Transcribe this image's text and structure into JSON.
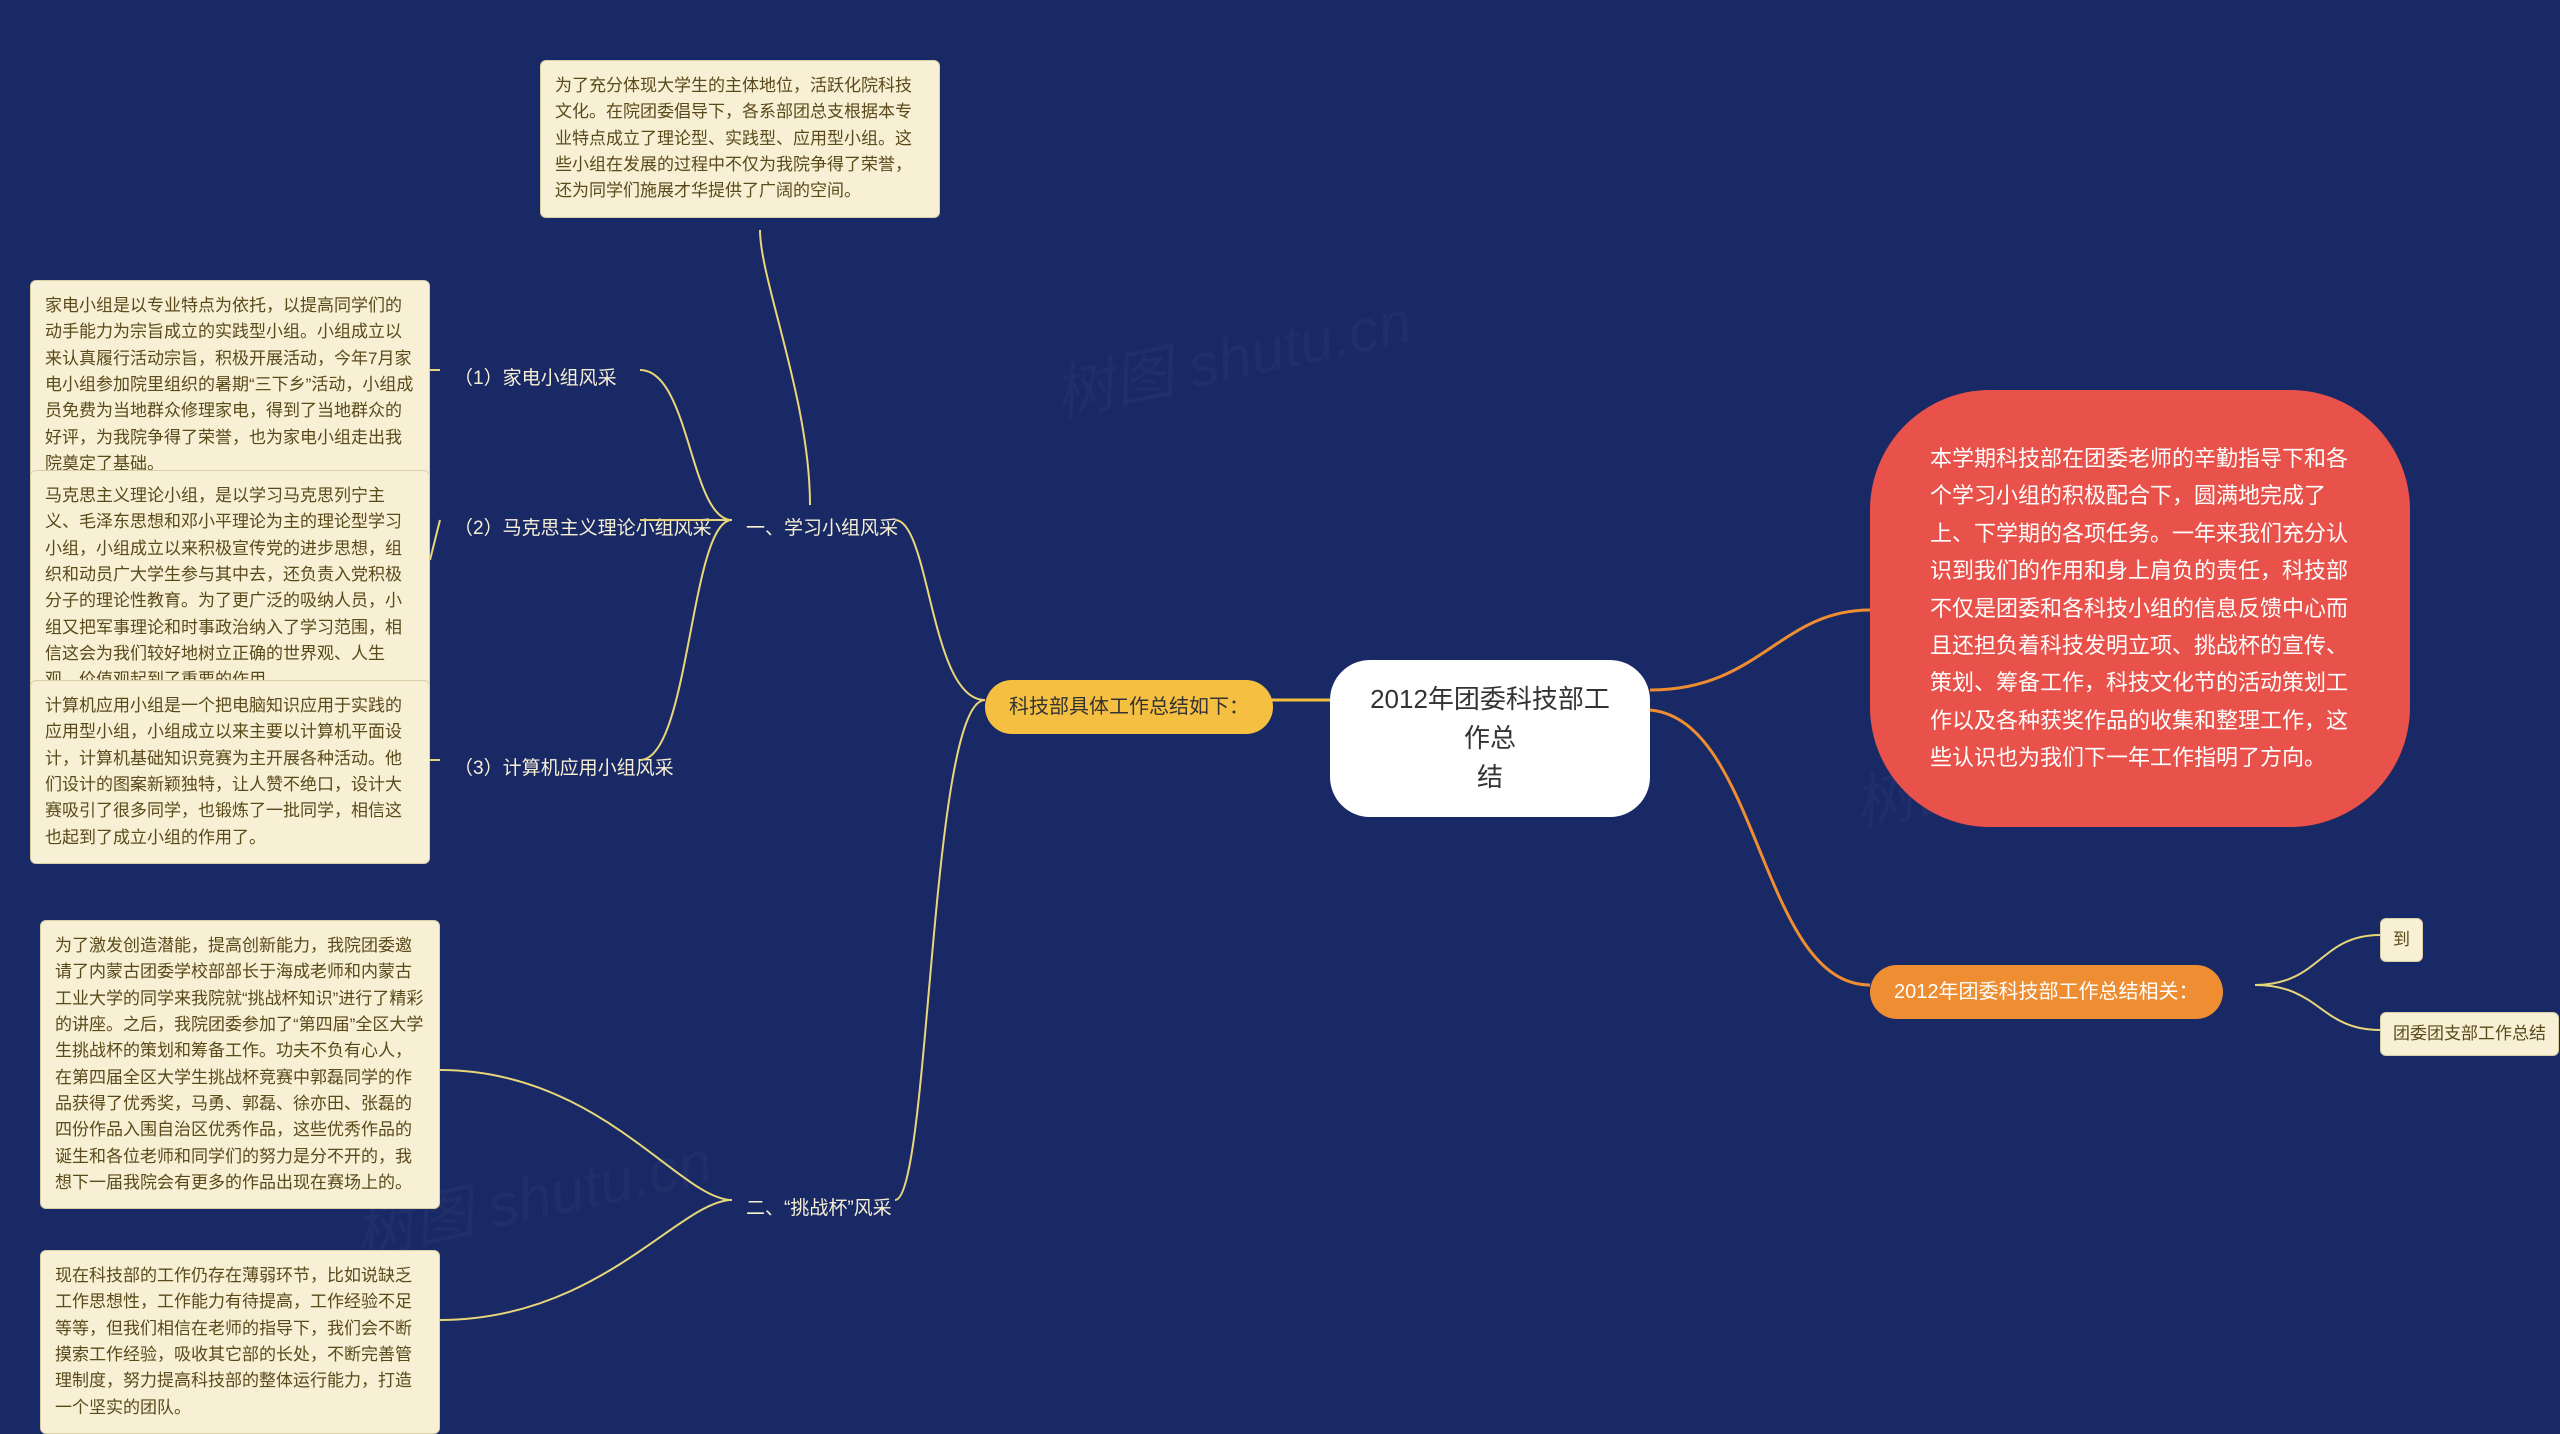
{
  "colors": {
    "background": "#192965",
    "root_bg": "#ffffff",
    "red": "#e9524b",
    "orange": "#ee8d31",
    "yellow": "#f5c042",
    "box_bg": "#f7f0d5",
    "box_border": "#d6cfa8",
    "box_text": "#5a4a1a",
    "label_text": "#f7f0d5",
    "line_orange": "#ee8d31",
    "line_yellow": "#e8d77a"
  },
  "root": {
    "text": "2012年团委科技部工作总\n结"
  },
  "red_summary": "本学期科技部在团委老师的辛勤指导下和各个学习小组的积极配合下，圆满地完成了上、下学期的各项任务。一年来我们充分认识到我们的作用和身上肩负的责任，科技部不仅是团委和各科技小组的信息反馈中心而且还担负着科技发明立项、挑战杯的宣传、策划、筹备工作，科技文化节的活动策划工作以及各种获奖作品的收集和整理工作，这些认识也为我们下一年工作指明了方向。",
  "related": {
    "label": "2012年团委科技部工作总结相关：",
    "items": [
      "到",
      "团委团支部工作总结"
    ]
  },
  "left_main": "科技部具体工作总结如下：",
  "section1": {
    "label": "一、学习小组风采",
    "intro": "为了充分体现大学生的主体地位，活跃化院科技文化。在院团委倡导下，各系部团总支根据本专业特点成立了理论型、实践型、应用型小组。这些小组在发展的过程中不仅为我院争得了荣誉，还为同学们施展才华提供了广阔的空间。",
    "sub1": {
      "label": "（1）家电小组风采",
      "detail": "家电小组是以专业特点为依托，以提高同学们的动手能力为宗旨成立的实践型小组。小组成立以来认真履行活动宗旨，积极开展活动，今年7月家电小组参加院里组织的暑期“三下乡”活动，小组成员免费为当地群众修理家电，得到了当地群众的好评，为我院争得了荣誉，也为家电小组走出我院奠定了基础。"
    },
    "sub2": {
      "label": "（2）马克思主义理论小组风采",
      "detail": "马克思主义理论小组，是以学习马克思列宁主义、毛泽东思想和邓小平理论为主的理论型学习小组，小组成立以来积极宣传党的进步思想，组织和动员广大学生参与其中去，还负责入党积极分子的理论性教育。为了更广泛的吸纳人员，小组又把军事理论和时事政治纳入了学习范围，相信这会为我们较好地树立正确的世界观、人生观、价值观起到了重要的作用。"
    },
    "sub3": {
      "label": "（3）计算机应用小组风采",
      "detail": "计算机应用小组是一个把电脑知识应用于实践的应用型小组，小组成立以来主要以计算机平面设计，计算机基础知识竞赛为主开展各种活动。他们设计的图案新颖独特，让人赞不绝口，设计大赛吸引了很多同学，也锻炼了一批同学，相信这也起到了成立小组的作用了。"
    }
  },
  "section2": {
    "label": "二、“挑战杯”风采",
    "detail1": "为了激发创造潜能，提高创新能力，我院团委邀请了内蒙古团委学校部部长于海成老师和内蒙古工业大学的同学来我院就“挑战杯知识”进行了精彩的讲座。之后，我院团委参加了“第四届”全区大学生挑战杯的策划和筹备工作。功夫不负有心人，在第四届全区大学生挑战杯竞赛中郭磊同学的作品获得了优秀奖，马勇、郭磊、徐亦田、张磊的四份作品入围自治区优秀作品，这些优秀作品的诞生和各位老师和同学们的努力是分不开的，我想下一届我院会有更多的作品出现在赛场上的。",
    "detail2": "现在科技部的工作仍存在薄弱环节，比如说缺乏工作思想性，工作能力有待提高，工作经验不足等等，但我们相信在老师的指导下，我们会不断摸索工作经验，吸收其它部的长处，不断完善管理制度，努力提高科技部的整体运行能力，打造一个坚实的团队。"
  },
  "watermark": "树图 shutu.cn"
}
